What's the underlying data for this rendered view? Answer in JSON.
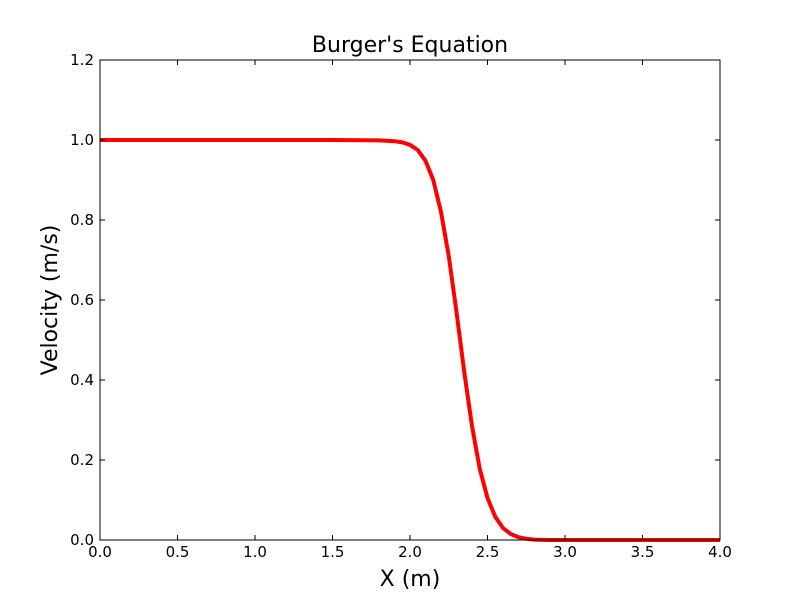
{
  "chart_data": {
    "type": "line",
    "title": "Burger's Equation",
    "xlabel": "X (m)",
    "ylabel": "Velocity (m/s)",
    "xlim": [
      0.0,
      4.0
    ],
    "ylim": [
      0.0,
      1.2
    ],
    "xticks": [
      "0.0",
      "0.5",
      "1.0",
      "1.5",
      "2.0",
      "2.5",
      "3.0",
      "3.5",
      "4.0"
    ],
    "yticks": [
      "0.0",
      "0.2",
      "0.4",
      "0.6",
      "0.8",
      "1.0",
      "1.2"
    ],
    "grid": false,
    "legend": "none",
    "series": [
      {
        "color": "#ff0000",
        "x": [
          0.0,
          0.5,
          1.0,
          1.5,
          1.8,
          1.9,
          1.95,
          2.0,
          2.05,
          2.1,
          2.15,
          2.2,
          2.25,
          2.3,
          2.35,
          2.4,
          2.45,
          2.5,
          2.55,
          2.6,
          2.65,
          2.7,
          2.75,
          2.8,
          2.9,
          3.0,
          3.5,
          4.0
        ],
        "y": [
          1.0,
          1.0,
          1.0,
          1.0,
          0.999,
          0.997,
          0.994,
          0.988,
          0.975,
          0.948,
          0.9,
          0.82,
          0.71,
          0.57,
          0.42,
          0.285,
          0.178,
          0.105,
          0.058,
          0.03,
          0.015,
          0.007,
          0.003,
          0.001,
          0.0,
          0.0,
          0.0,
          0.0
        ]
      }
    ]
  }
}
